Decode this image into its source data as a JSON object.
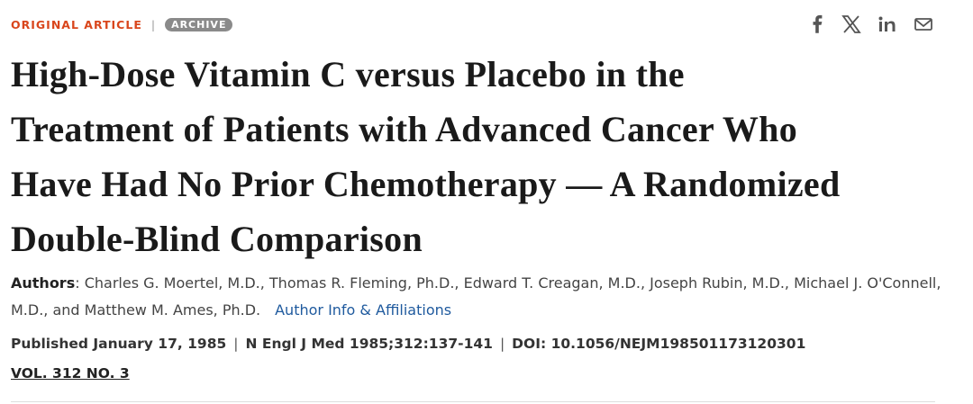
{
  "header": {
    "article_type": "ORIGINAL ARTICLE",
    "separator": "|",
    "badge": "ARCHIVE"
  },
  "title": {
    "lines": [
      "High-Dose Vitamin C versus Placebo in the",
      "Treatment of Patients with Advanced Cancer Who",
      "Have Had No Prior Chemotherapy — A Randomized",
      "Double-Blind Comparison"
    ]
  },
  "authors": {
    "label": "Authors",
    "colon": ":",
    "names": "Charles G. Moertel, M.D., Thomas R. Fleming, Ph.D., Edward T. Creagan, M.D., Joseph Rubin, M.D., Michael J. O'Connell, M.D., and Matthew M. Ames, Ph.D.",
    "link": "Author Info & Affiliations"
  },
  "publication": {
    "items": [
      "Published January 17, 1985",
      "N Engl J Med 1985;312:137-141",
      "DOI: 10.1056/NEJM198501173120301"
    ],
    "separator": "|",
    "issue": "VOL. 312 NO. 3"
  }
}
